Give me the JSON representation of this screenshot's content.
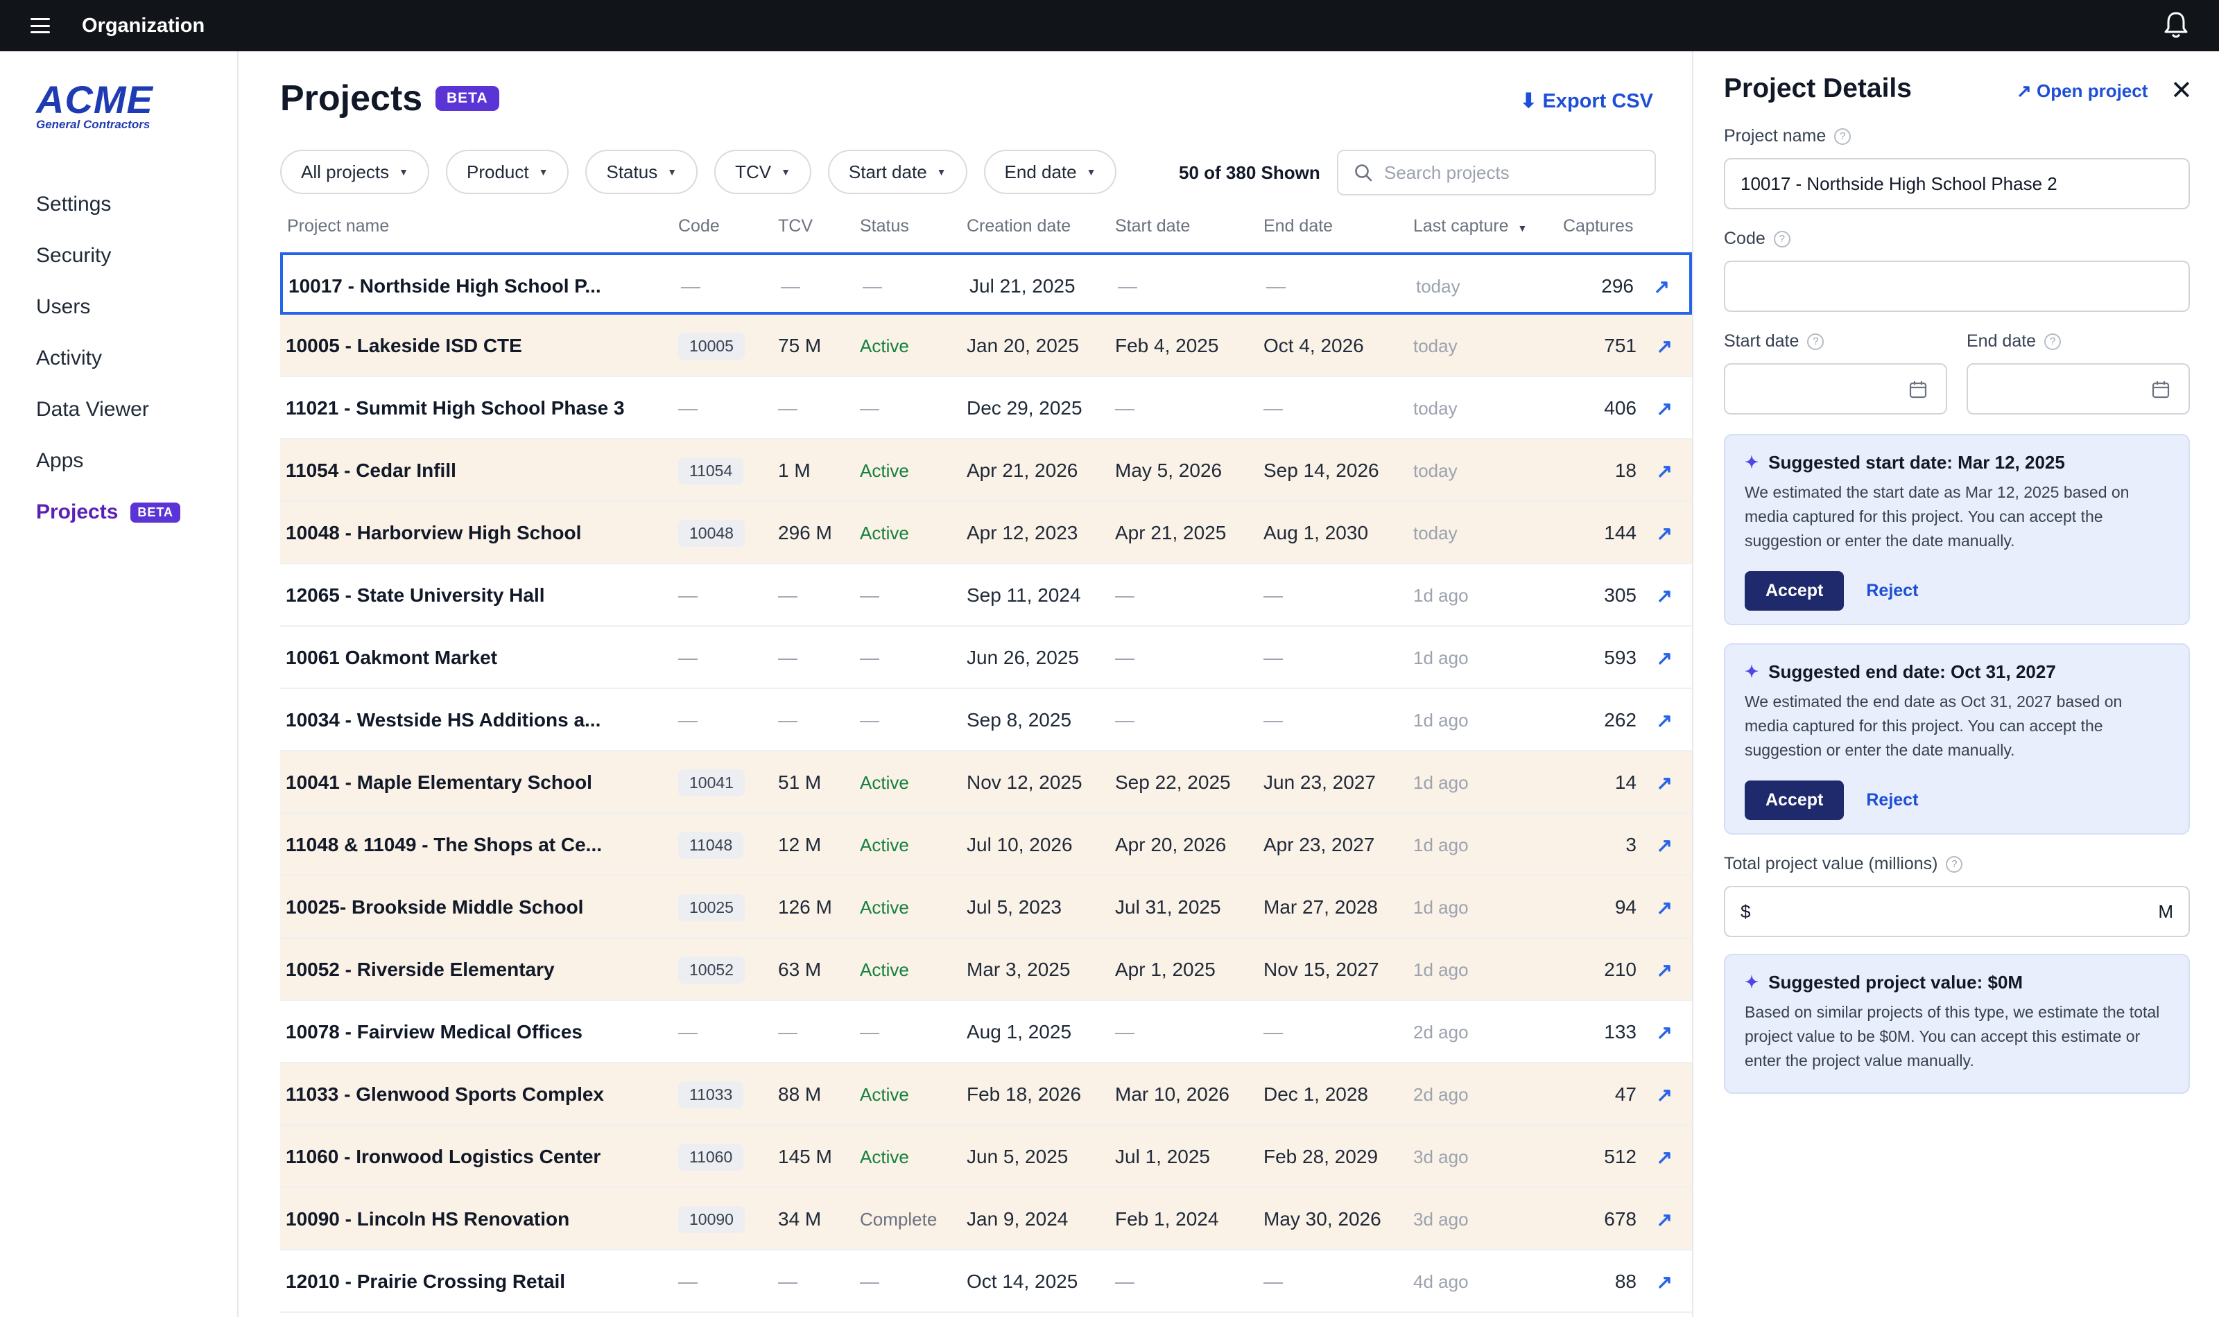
{
  "topbar": {
    "title": "Organization"
  },
  "logo": {
    "main": "ACME",
    "sub": "General Contractors"
  },
  "sidebar": {
    "items": [
      {
        "label": "Settings"
      },
      {
        "label": "Security"
      },
      {
        "label": "Users"
      },
      {
        "label": "Activity"
      },
      {
        "label": "Data Viewer"
      },
      {
        "label": "Apps"
      },
      {
        "label": "Projects",
        "badge": "BETA",
        "active": true
      }
    ]
  },
  "main": {
    "title": "Projects",
    "title_badge": "BETA",
    "export_label": "Export CSV",
    "filters": [
      "All projects",
      "Product",
      "Status",
      "TCV",
      "Start date",
      "End date"
    ],
    "shown_text": "50 of 380 Shown",
    "search_placeholder": "Search projects",
    "columns": [
      "Project name",
      "Code",
      "TCV",
      "Status",
      "Creation date",
      "Start date",
      "End date",
      "Last capture",
      "Captures"
    ]
  },
  "rows": [
    {
      "name": "10017 - Northside High School P...",
      "code": "—",
      "tcv": "—",
      "status": "—",
      "created": "Jul 21, 2025",
      "start": "—",
      "end": "—",
      "last": "today",
      "captures": "296"
    },
    {
      "name": "10005 - Lakeside ISD CTE",
      "code": "10005",
      "tcv": "75 M",
      "status": "Active",
      "created": "Jan 20, 2025",
      "start": "Feb 4, 2025",
      "end": "Oct 4, 2026",
      "last": "today",
      "captures": "751"
    },
    {
      "name": "11021 - Summit High School Phase 3",
      "code": "—",
      "tcv": "—",
      "status": "—",
      "created": "Dec 29, 2025",
      "start": "—",
      "end": "—",
      "last": "today",
      "captures": "406"
    },
    {
      "name": "11054 - Cedar Infill",
      "code": "11054",
      "tcv": "1 M",
      "status": "Active",
      "created": "Apr 21, 2026",
      "start": "May 5, 2026",
      "end": "Sep 14, 2026",
      "last": "today",
      "captures": "18"
    },
    {
      "name": "10048 - Harborview High School",
      "code": "10048",
      "tcv": "296 M",
      "status": "Active",
      "created": "Apr 12, 2023",
      "start": "Apr 21, 2025",
      "end": "Aug 1, 2030",
      "last": "today",
      "captures": "144"
    },
    {
      "name": "12065 - State University Hall",
      "code": "—",
      "tcv": "—",
      "status": "—",
      "created": "Sep 11, 2024",
      "start": "—",
      "end": "—",
      "last": "1d ago",
      "captures": "305"
    },
    {
      "name": "10061 Oakmont Market",
      "code": "—",
      "tcv": "—",
      "status": "—",
      "created": "Jun 26, 2025",
      "start": "—",
      "end": "—",
      "last": "1d ago",
      "captures": "593"
    },
    {
      "name": "10034 - Westside HS Additions a...",
      "code": "—",
      "tcv": "—",
      "status": "—",
      "created": "Sep 8, 2025",
      "start": "—",
      "end": "—",
      "last": "1d ago",
      "captures": "262"
    },
    {
      "name": "10041 - Maple Elementary School",
      "code": "10041",
      "tcv": "51 M",
      "status": "Active",
      "created": "Nov 12, 2025",
      "start": "Sep 22, 2025",
      "end": "Jun 23, 2027",
      "last": "1d ago",
      "captures": "14"
    },
    {
      "name": "11048 & 11049 - The Shops at Ce...",
      "code": "11048",
      "tcv": "12 M",
      "status": "Active",
      "created": "Jul 10, 2026",
      "start": "Apr 20, 2026",
      "end": "Apr 23, 2027",
      "last": "1d ago",
      "captures": "3"
    },
    {
      "name": "10025- Brookside Middle School",
      "code": "10025",
      "tcv": "126 M",
      "status": "Active",
      "created": "Jul 5, 2023",
      "start": "Jul 31, 2025",
      "end": "Mar 27, 2028",
      "last": "1d ago",
      "captures": "94"
    },
    {
      "name": "10052 - Riverside Elementary",
      "code": "10052",
      "tcv": "63 M",
      "status": "Active",
      "created": "Mar 3, 2025",
      "start": "Apr 1, 2025",
      "end": "Nov 15, 2027",
      "last": "1d ago",
      "captures": "210"
    },
    {
      "name": "10078 - Fairview Medical Offices",
      "code": "—",
      "tcv": "—",
      "status": "—",
      "created": "Aug 1, 2025",
      "start": "—",
      "end": "—",
      "last": "2d ago",
      "captures": "133"
    },
    {
      "name": "11033 - Glenwood Sports Complex",
      "code": "11033",
      "tcv": "88 M",
      "status": "Active",
      "created": "Feb 18, 2026",
      "start": "Mar 10, 2026",
      "end": "Dec 1, 2028",
      "last": "2d ago",
      "captures": "47"
    },
    {
      "name": "11060 - Ironwood Logistics Center",
      "code": "11060",
      "tcv": "145 M",
      "status": "Active",
      "created": "Jun 5, 2025",
      "start": "Jul 1, 2025",
      "end": "Feb 28, 2029",
      "last": "3d ago",
      "captures": "512"
    },
    {
      "name": "10090 - Lincoln HS Renovation",
      "code": "10090",
      "tcv": "34 M",
      "status": "Complete",
      "created": "Jan 9, 2024",
      "start": "Feb 1, 2024",
      "end": "May 30, 2026",
      "last": "3d ago",
      "captures": "678"
    },
    {
      "name": "12010 - Prairie Crossing Retail",
      "code": "—",
      "tcv": "—",
      "status": "—",
      "created": "Oct 14, 2025",
      "start": "—",
      "end": "—",
      "last": "4d ago",
      "captures": "88"
    }
  ],
  "details": {
    "title": "Project Details",
    "open_label": "Open project",
    "project_name_label": "Project name",
    "project_name_value": "10017 - Northside High School Phase 2",
    "code_label": "Code",
    "code_value": "",
    "start_label": "Start date",
    "end_label": "End date",
    "suggest_start_title": "Suggested start date: Mar 12, 2025",
    "suggest_start_body": "We estimated the start date as Mar 12, 2025 based on media captured for this project. You can accept the suggestion or enter the date manually.",
    "suggest_end_title": "Suggested end date: Oct 31, 2027",
    "suggest_end_body": "We estimated the end date as Oct 31, 2027 based on media captured for this project. You can accept the suggestion or enter the date manually.",
    "accept_label": "Accept",
    "reject_label": "Reject",
    "tpv_label": "Total project value (millions)",
    "tpv_prefix": "$",
    "tpv_suffix": "M",
    "suggest_value_title": "Suggested project value: $0M",
    "suggest_value_body": "Based on similar projects of this type, we estimate the total project value to be $0M. You can accept this estimate or enter the project value manually."
  },
  "colors": {
    "accent": "#1d4ed8",
    "brand": "#1f3bb3",
    "beta": "#5b34d6",
    "active_status": "#15803d",
    "row_highlight": "#faf1e7",
    "suggest_bg": "#e8eefc",
    "accept_bg": "#1e2a6b",
    "topbar": "#111418"
  },
  "icons": [
    "menu-icon",
    "bell-icon",
    "search-icon",
    "download-icon",
    "external-link-icon",
    "close-icon",
    "help-icon",
    "calendar-icon",
    "sparkle-icon",
    "sort-down-icon",
    "chevron-down-icon"
  ]
}
